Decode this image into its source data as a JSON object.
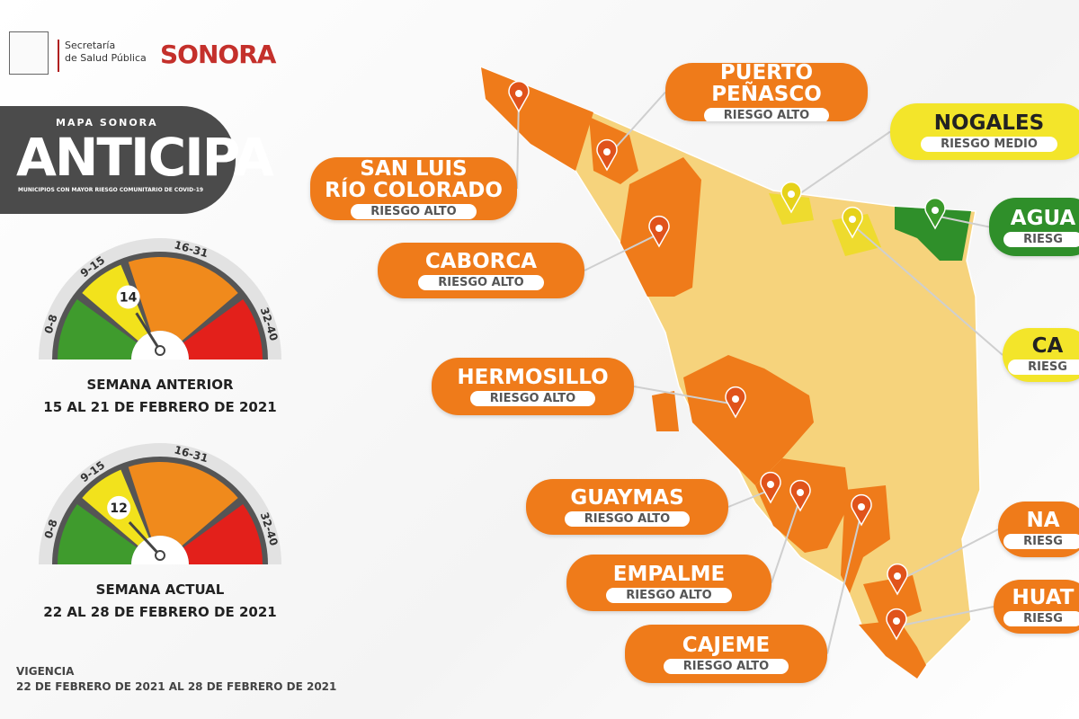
{
  "header": {
    "org_lines": [
      "Secretaría",
      "de Salud Pública"
    ],
    "brand": "SONORA"
  },
  "badge": {
    "kicker": "MAPA SONORA",
    "title": "ANTICIPA",
    "subtitle": "MUNICIPIOS CON MAYOR RIESGO COMUNITARIO DE COVID-19"
  },
  "gauges": [
    {
      "value": 14,
      "label": "SEMANA ANTERIOR",
      "dates": "15 AL 21 DE FEBRERO DE 2021",
      "ranges": [
        {
          "label": "0-8",
          "from": 0,
          "to": 8,
          "color": "#3f9b2d"
        },
        {
          "label": "9-15",
          "from": 9,
          "to": 15,
          "color": "#f2e21c"
        },
        {
          "label": "16-31",
          "from": 16,
          "to": 31,
          "color": "#f08a1c"
        },
        {
          "label": "32-40",
          "from": 32,
          "to": 40,
          "color": "#e3201b"
        }
      ]
    },
    {
      "value": 12,
      "label": "SEMANA ACTUAL",
      "dates": "22 AL 28 DE FEBRERO DE 2021",
      "ranges": [
        {
          "label": "0-8",
          "from": 0,
          "to": 8,
          "color": "#3f9b2d"
        },
        {
          "label": "9-15",
          "from": 9,
          "to": 15,
          "color": "#f2e21c"
        },
        {
          "label": "16-31",
          "from": 16,
          "to": 31,
          "color": "#f08a1c"
        },
        {
          "label": "32-40",
          "from": 32,
          "to": 40,
          "color": "#e3201b"
        }
      ]
    }
  ],
  "validity": {
    "label": "VIGENCIA",
    "dates": "22 DE FEBRERO DE 2021 AL 28 DE FEBRERO DE 2021"
  },
  "callouts": [
    {
      "name": [
        "PUERTO",
        "PEÑASCO"
      ],
      "risk": "RIESGO ALTO",
      "color": "#ef7b1a"
    },
    {
      "name": [
        "NOGALES"
      ],
      "risk": "RIESGO MEDIO",
      "color": "#f3e52a"
    },
    {
      "name": [
        "SAN LUIS",
        "RÍO COLORADO"
      ],
      "risk": "RIESGO ALTO",
      "color": "#ef7b1a"
    },
    {
      "name": [
        "AGUA"
      ],
      "risk": "RIESG",
      "color": "#2f8f2a"
    },
    {
      "name": [
        "CABORCA"
      ],
      "risk": "RIESGO ALTO",
      "color": "#ef7b1a"
    },
    {
      "name": [
        "CA"
      ],
      "risk": "RIESG",
      "color": "#f3e52a"
    },
    {
      "name": [
        "HERMOSILLO"
      ],
      "risk": "RIESGO ALTO",
      "color": "#ef7b1a"
    },
    {
      "name": [
        "GUAYMAS"
      ],
      "risk": "RIESGO ALTO",
      "color": "#ef7b1a"
    },
    {
      "name": [
        "NA"
      ],
      "risk": "RIESG",
      "color": "#ef7b1a"
    },
    {
      "name": [
        "EMPALME"
      ],
      "risk": "RIESGO ALTO",
      "color": "#ef7b1a"
    },
    {
      "name": [
        "HUAT"
      ],
      "risk": "RIESG",
      "color": "#ef7b1a"
    },
    {
      "name": [
        "CAJEME"
      ],
      "risk": "RIESGO ALTO",
      "color": "#ef7b1a"
    }
  ]
}
